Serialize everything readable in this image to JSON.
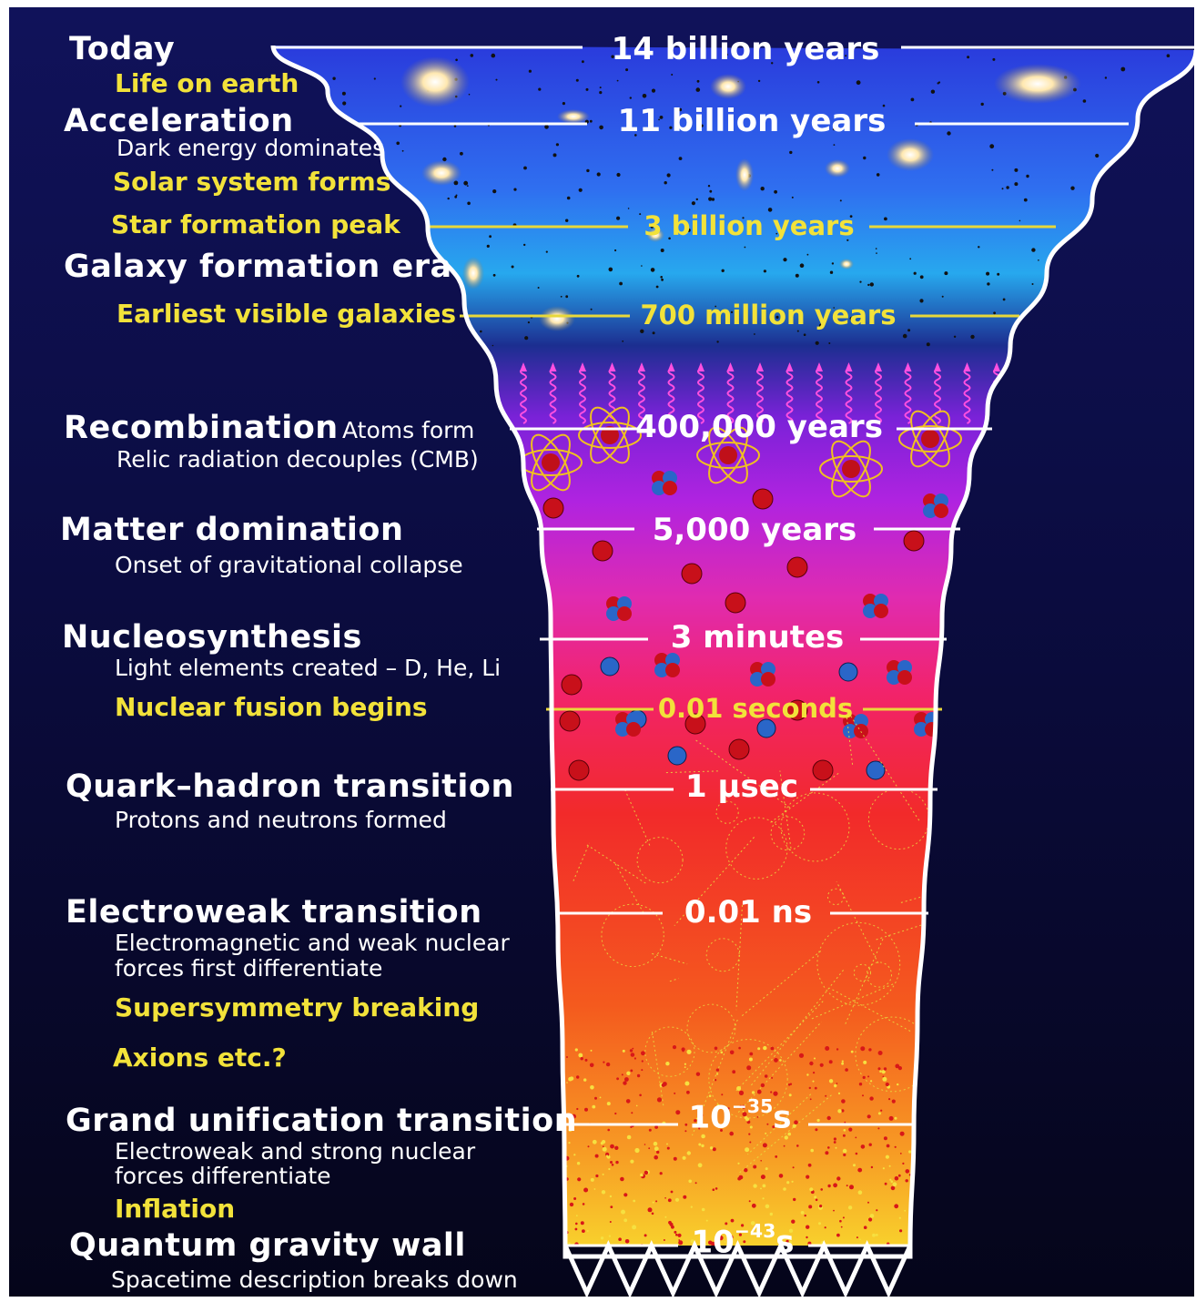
{
  "eras": [
    {
      "id": "today",
      "name": "Today",
      "time": "14 billion years",
      "time_color": "white"
    },
    {
      "id": "life",
      "highlight": "Life on earth"
    },
    {
      "id": "acceleration",
      "name": "Acceleration",
      "description": "Dark energy dominates",
      "time": "11 billion years",
      "time_color": "white"
    },
    {
      "id": "solar",
      "highlight": "Solar system forms"
    },
    {
      "id": "starpeak",
      "highlight": "Star formation peak",
      "time": "3 billion years",
      "time_color": "yellow"
    },
    {
      "id": "galaxy",
      "name": "Galaxy formation era"
    },
    {
      "id": "earliest",
      "highlight": "Earliest visible galaxies",
      "time": "700 million years",
      "time_color": "yellow"
    },
    {
      "id": "recombination",
      "name": "Recombination",
      "inline_note": "Atoms form",
      "description": "Relic radiation decouples (CMB)",
      "time": "400,000 years",
      "time_color": "white"
    },
    {
      "id": "matter",
      "name": "Matter domination",
      "description": "Onset of gravitational collapse",
      "time": "5,000 years",
      "time_color": "white"
    },
    {
      "id": "nucleo",
      "name": "Nucleosynthesis",
      "description": "Light elements created – D, He, Li",
      "time": "3 minutes",
      "time_color": "white"
    },
    {
      "id": "fusion",
      "highlight": "Nuclear fusion begins",
      "time": "0.01 seconds",
      "time_color": "yellow"
    },
    {
      "id": "quark",
      "name": "Quark–hadron transition",
      "description": "Protons and neutrons formed",
      "time": "1 µsec",
      "time_color": "white"
    },
    {
      "id": "electroweak",
      "name": "Electroweak transition",
      "description": "Electromagnetic and weak nuclear",
      "description2": "forces first differentiate",
      "time": "0.01 ns",
      "time_color": "white"
    },
    {
      "id": "susy",
      "highlight": "Supersymmetry breaking"
    },
    {
      "id": "axions",
      "highlight": "Axions etc.?"
    },
    {
      "id": "gut",
      "name": "Grand unification transition",
      "description": "Electroweak and strong nuclear",
      "description2": "forces differentiate",
      "time_base": "10",
      "time_exp": "−35",
      "time_unit": "s",
      "time_color": "white"
    },
    {
      "id": "inflation",
      "highlight": "Inflation"
    },
    {
      "id": "qgw",
      "name": "Quantum gravity wall",
      "description": "Spacetime description breaks down",
      "time_base": "10",
      "time_exp": "−43",
      "time_unit": "s",
      "time_color": "white"
    }
  ],
  "colors": {
    "background": "#0b0b3a",
    "highlight": "#f2e23a",
    "text": "#ffffff"
  }
}
